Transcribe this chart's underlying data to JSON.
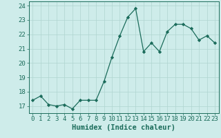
{
  "x": [
    0,
    1,
    2,
    3,
    4,
    5,
    6,
    7,
    8,
    9,
    10,
    11,
    12,
    13,
    14,
    15,
    16,
    17,
    18,
    19,
    20,
    21,
    22,
    23
  ],
  "y": [
    17.4,
    17.7,
    17.1,
    17.0,
    17.1,
    16.8,
    17.4,
    17.4,
    17.4,
    18.7,
    20.4,
    21.9,
    23.2,
    23.8,
    20.8,
    21.4,
    20.8,
    22.2,
    22.7,
    22.7,
    22.4,
    21.6,
    21.9,
    21.4
  ],
  "xlabel": "Humidex (Indice chaleur)",
  "xlim": [
    -0.5,
    23.5
  ],
  "ylim": [
    16.5,
    24.3
  ],
  "yticks": [
    17,
    18,
    19,
    20,
    21,
    22,
    23,
    24
  ],
  "xticks": [
    0,
    1,
    2,
    3,
    4,
    5,
    6,
    7,
    8,
    9,
    10,
    11,
    12,
    13,
    14,
    15,
    16,
    17,
    18,
    19,
    20,
    21,
    22,
    23
  ],
  "xtick_labels": [
    "0",
    "1",
    "2",
    "3",
    "4",
    "5",
    "6",
    "7",
    "8",
    "9",
    "10",
    "11",
    "12",
    "13",
    "14",
    "15",
    "16",
    "17",
    "18",
    "19",
    "20",
    "21",
    "22",
    "23"
  ],
  "line_color": "#1a6b5a",
  "marker": "D",
  "marker_size": 2.2,
  "bg_color": "#ceecea",
  "grid_color": "#afd4d0",
  "axis_color": "#1a6b5a",
  "label_color": "#1a6b5a",
  "tick_color": "#1a6b5a",
  "xlabel_fontsize": 7.5,
  "tick_fontsize": 6.5
}
